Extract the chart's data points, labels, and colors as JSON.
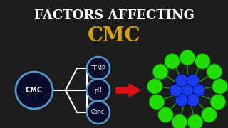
{
  "bg_color": "#1c1c1c",
  "title1": "FACTORS AFFECTING",
  "title2": "CMC",
  "title1_color": "#ffffff",
  "title2_color": "#d4a017",
  "title1_fontsize": 13,
  "title2_fontsize": 20,
  "diagram_labels": [
    "TEMP",
    "pH",
    "Conc."
  ],
  "cmc_label": "CMC",
  "micelle_center_color": "#1a3aee",
  "micelle_outer_color": "#22dd00",
  "micelle_line_color": "#228822",
  "arrow_color": "#dd1111",
  "circle_face": "#0a0a2a",
  "circle_edge": "#5599cc"
}
